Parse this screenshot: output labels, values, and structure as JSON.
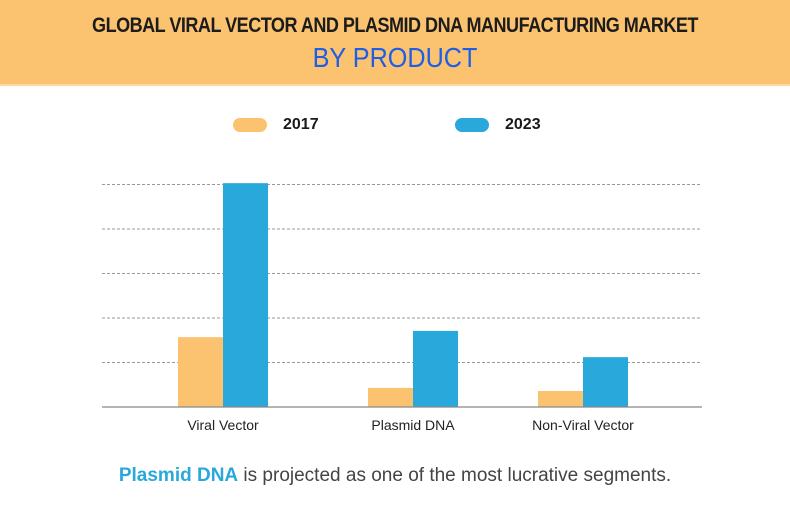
{
  "header": {
    "title": "GLOBAL VIRAL VECTOR AND PLASMID DNA MANUFACTURING MARKET",
    "subtitle": "BY PRODUCT"
  },
  "colors": {
    "header_bg": "#fbc26f",
    "subtitle": "#1f5ee6",
    "series_2017": "#fbc26f",
    "series_2023": "#29a8dc",
    "highlight": "#29a8dc"
  },
  "caption": {
    "highlight": "Plasmid DNA",
    "rest": " is projected as one of the most lucrative segments."
  },
  "chart_data": {
    "type": "bar",
    "title": "GLOBAL VIRAL VECTOR AND PLASMID DNA MANUFACTURING MARKET BY PRODUCT",
    "xlabel": "",
    "ylabel": "",
    "y_units": "relative (1 unit = 1 gridline interval; no axis values shown)",
    "ylim": [
      0,
      5
    ],
    "grid": true,
    "legend_position": "top",
    "categories": [
      "Viral Vector",
      "Plasmid DNA",
      "Non-Viral Vector"
    ],
    "series": [
      {
        "name": "2017",
        "color": "#fbc26f",
        "values": [
          1.57,
          0.43,
          0.36
        ]
      },
      {
        "name": "2023",
        "color": "#29a8dc",
        "values": [
          5.03,
          1.71,
          1.12
        ]
      }
    ]
  }
}
